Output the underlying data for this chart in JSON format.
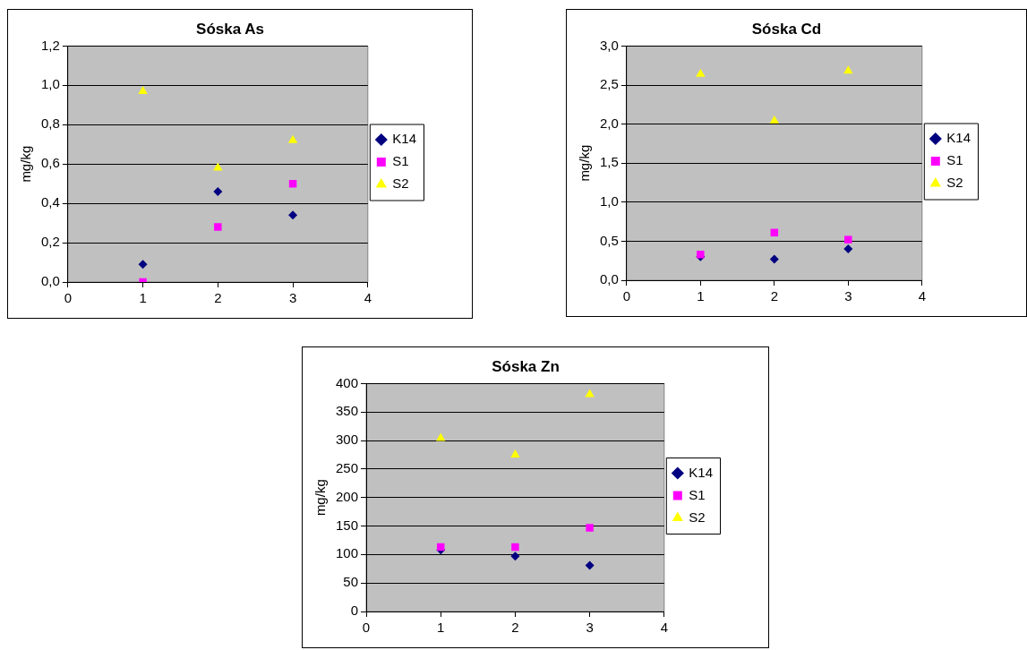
{
  "chart_data": [
    {
      "type": "scatter",
      "title": "Sóska As",
      "ylabel": "mg/kg",
      "x": [
        1,
        2,
        3
      ],
      "xlim": [
        0,
        4
      ],
      "xticks": [
        0,
        1,
        2,
        3,
        4
      ],
      "ylim": [
        0,
        1.2
      ],
      "yticks": [
        {
          "value": 0,
          "label": "0,0"
        },
        {
          "value": 0.2,
          "label": "0,2"
        },
        {
          "value": 0.4,
          "label": "0,4"
        },
        {
          "value": 0.6,
          "label": "0,6"
        },
        {
          "value": 0.8,
          "label": "0,8"
        },
        {
          "value": 1.0,
          "label": "1,0"
        },
        {
          "value": 1.2,
          "label": "1,2"
        }
      ],
      "grid": "y",
      "legend": "right",
      "series": [
        {
          "name": "K14",
          "color": "#000080",
          "marker": "diamond",
          "values": [
            0.09,
            0.46,
            0.34
          ]
        },
        {
          "name": "S1",
          "color": "#ff00ff",
          "marker": "square",
          "values": [
            0.0,
            0.28,
            0.5
          ]
        },
        {
          "name": "S2",
          "color": "#ffff00",
          "marker": "triangle",
          "values": [
            0.97,
            0.58,
            0.72
          ]
        }
      ]
    },
    {
      "type": "scatter",
      "title": "Sóska Cd",
      "ylabel": "mg/kg",
      "x": [
        1,
        2,
        3
      ],
      "xlim": [
        0,
        4
      ],
      "xticks": [
        0,
        1,
        2,
        3,
        4
      ],
      "ylim": [
        0,
        3.0
      ],
      "yticks": [
        {
          "value": 0,
          "label": "0,0"
        },
        {
          "value": 0.5,
          "label": "0,5"
        },
        {
          "value": 1.0,
          "label": "1,0"
        },
        {
          "value": 1.5,
          "label": "1,5"
        },
        {
          "value": 2.0,
          "label": "2,0"
        },
        {
          "value": 2.5,
          "label": "2,5"
        },
        {
          "value": 3.0,
          "label": "3,0"
        }
      ],
      "grid": "y",
      "legend": "right",
      "series": [
        {
          "name": "K14",
          "color": "#000080",
          "marker": "diamond",
          "values": [
            0.3,
            0.27,
            0.4
          ]
        },
        {
          "name": "S1",
          "color": "#ff00ff",
          "marker": "square",
          "values": [
            0.33,
            0.61,
            0.52
          ]
        },
        {
          "name": "S2",
          "color": "#ffff00",
          "marker": "triangle",
          "values": [
            2.64,
            2.04,
            2.68
          ]
        }
      ]
    },
    {
      "type": "scatter",
      "title": "Sóska Zn",
      "ylabel": "mg/kg",
      "x": [
        1,
        2,
        3
      ],
      "xlim": [
        0,
        4
      ],
      "xticks": [
        0,
        1,
        2,
        3,
        4
      ],
      "ylim": [
        0,
        400
      ],
      "yticks": [
        0,
        50,
        100,
        150,
        200,
        250,
        300,
        350,
        400
      ],
      "grid": "y",
      "legend": "right",
      "series": [
        {
          "name": "K14",
          "color": "#000080",
          "marker": "diamond",
          "values": [
            108,
            97,
            81
          ]
        },
        {
          "name": "S1",
          "color": "#ff00ff",
          "marker": "square",
          "values": [
            113,
            113,
            147
          ]
        },
        {
          "name": "S2",
          "color": "#ffff00",
          "marker": "triangle",
          "values": [
            304,
            275,
            381
          ]
        }
      ]
    }
  ]
}
